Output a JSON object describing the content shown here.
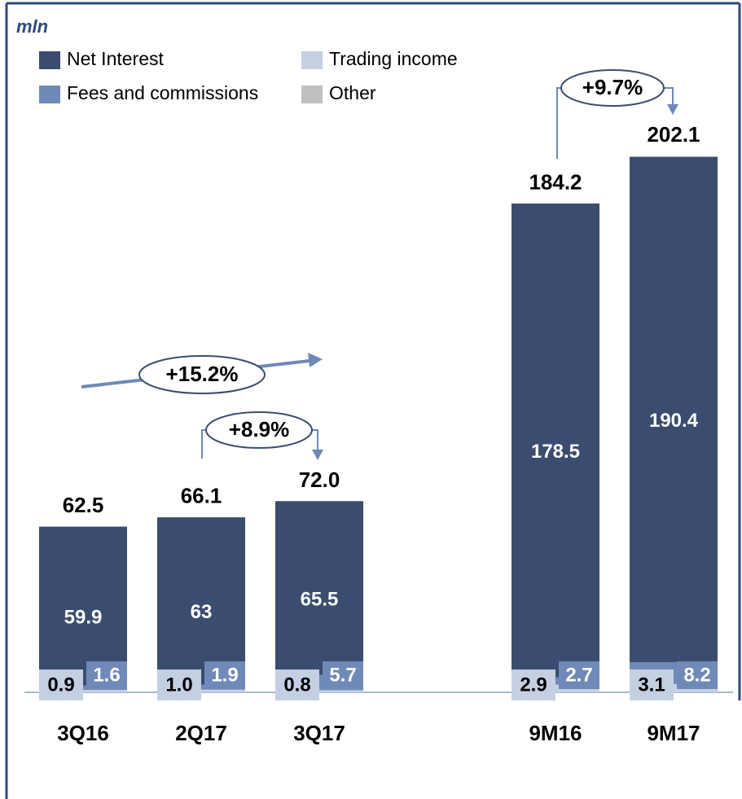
{
  "chart_data": {
    "type": "stacked_bar",
    "unit_label": "mln",
    "categories": [
      "3Q16",
      "2Q17",
      "3Q17",
      "9M16",
      "9M17"
    ],
    "series": [
      {
        "name": "Net Interest",
        "color": "#3a4d6e",
        "values": [
          59.9,
          63.0,
          65.5,
          178.5,
          190.4
        ]
      },
      {
        "name": "Fees and commissions",
        "color": "#6f89b8",
        "values": [
          1.6,
          1.9,
          5.7,
          2.7,
          8.2
        ]
      },
      {
        "name": "Trading income",
        "color": "#c5cfe3",
        "values": [
          0.9,
          1.0,
          0.8,
          2.9,
          3.1
        ]
      },
      {
        "name": "Other",
        "color": "#bfbfbf",
        "values": [
          null,
          null,
          null,
          null,
          null
        ]
      }
    ],
    "value_labels": [
      "0.9",
      "1.0",
      "0.8",
      "2.9",
      "3.1"
    ],
    "totals": [
      62.5,
      66.1,
      72.0,
      184.2,
      202.1
    ],
    "totals_labels": [
      "62.5",
      "66.1",
      "72.0",
      "184.2",
      "202.1"
    ],
    "annotations": [
      "+15.2%",
      "+8.9%",
      "+9.7%"
    ]
  }
}
